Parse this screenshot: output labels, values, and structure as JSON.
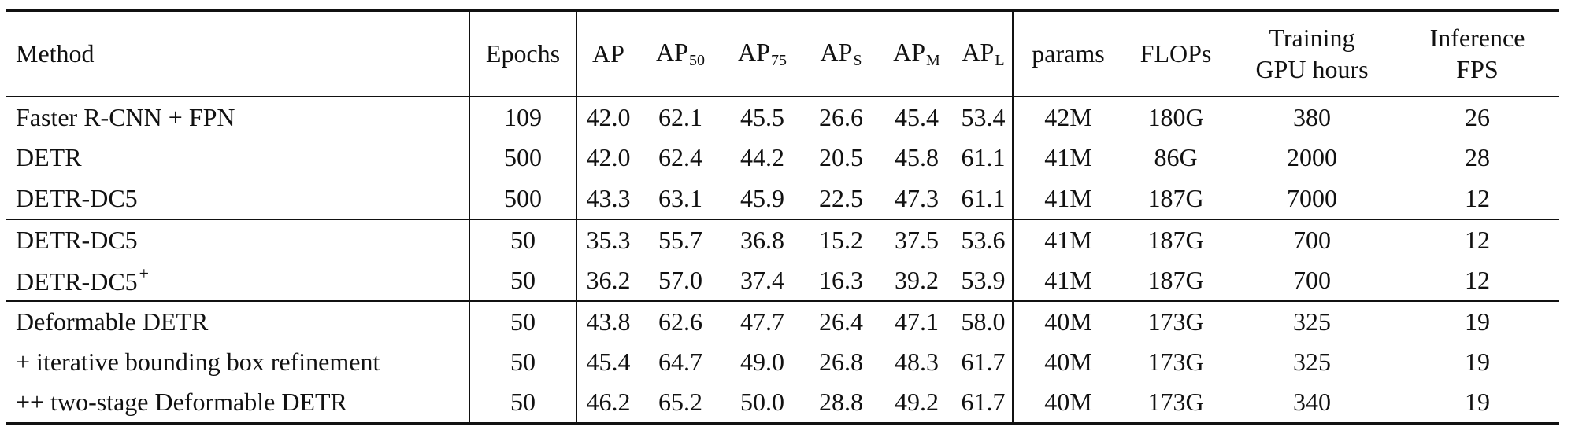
{
  "table": {
    "headers": {
      "method": "Method",
      "epochs": "Epochs",
      "ap": "AP",
      "ap50_base": "AP",
      "ap50_sub": "50",
      "ap75_base": "AP",
      "ap75_sub": "75",
      "aps_base": "AP",
      "aps_sub": "S",
      "apm_base": "AP",
      "apm_sub": "M",
      "apl_base": "AP",
      "apl_sub": "L",
      "params": "params",
      "flops": "FLOPs",
      "training_line1": "Training",
      "training_line2": "GPU hours",
      "inference_line1": "Inference",
      "inference_line2": "FPS"
    },
    "groups": [
      {
        "rows": [
          {
            "method": "Faster R-CNN + FPN",
            "method_sup": "",
            "epochs": "109",
            "ap": "42.0",
            "ap50": "62.1",
            "ap75": "45.5",
            "aps": "26.6",
            "apm": "45.4",
            "apl": "53.4",
            "params": "42M",
            "flops": "180G",
            "training": "380",
            "inference": "26"
          },
          {
            "method": "DETR",
            "method_sup": "",
            "epochs": "500",
            "ap": "42.0",
            "ap50": "62.4",
            "ap75": "44.2",
            "aps": "20.5",
            "apm": "45.8",
            "apl": "61.1",
            "params": "41M",
            "flops": "86G",
            "training": "2000",
            "inference": "28"
          },
          {
            "method": "DETR-DC5",
            "method_sup": "",
            "epochs": "500",
            "ap": "43.3",
            "ap50": "63.1",
            "ap75": "45.9",
            "aps": "22.5",
            "apm": "47.3",
            "apl": "61.1",
            "params": "41M",
            "flops": "187G",
            "training": "7000",
            "inference": "12"
          }
        ]
      },
      {
        "rows": [
          {
            "method": "DETR-DC5",
            "method_sup": "",
            "epochs": "50",
            "ap": "35.3",
            "ap50": "55.7",
            "ap75": "36.8",
            "aps": "15.2",
            "apm": "37.5",
            "apl": "53.6",
            "params": "41M",
            "flops": "187G",
            "training": "700",
            "inference": "12"
          },
          {
            "method": "DETR-DC5",
            "method_sup": "+",
            "epochs": "50",
            "ap": "36.2",
            "ap50": "57.0",
            "ap75": "37.4",
            "aps": "16.3",
            "apm": "39.2",
            "apl": "53.9",
            "params": "41M",
            "flops": "187G",
            "training": "700",
            "inference": "12"
          }
        ]
      },
      {
        "rows": [
          {
            "method": "Deformable DETR",
            "method_sup": "",
            "epochs": "50",
            "ap": "43.8",
            "ap50": "62.6",
            "ap75": "47.7",
            "aps": "26.4",
            "apm": "47.1",
            "apl": "58.0",
            "params": "40M",
            "flops": "173G",
            "training": "325",
            "inference": "19"
          },
          {
            "method": "+ iterative bounding box refinement",
            "method_sup": "",
            "epochs": "50",
            "ap": "45.4",
            "ap50": "64.7",
            "ap75": "49.0",
            "aps": "26.8",
            "apm": "48.3",
            "apl": "61.7",
            "params": "40M",
            "flops": "173G",
            "training": "325",
            "inference": "19"
          },
          {
            "method": "++ two-stage Deformable DETR",
            "method_sup": "",
            "epochs": "50",
            "ap": "46.2",
            "ap50": "65.2",
            "ap75": "50.0",
            "aps": "28.8",
            "apm": "49.2",
            "apl": "61.7",
            "params": "40M",
            "flops": "173G",
            "training": "340",
            "inference": "19"
          }
        ]
      }
    ]
  }
}
